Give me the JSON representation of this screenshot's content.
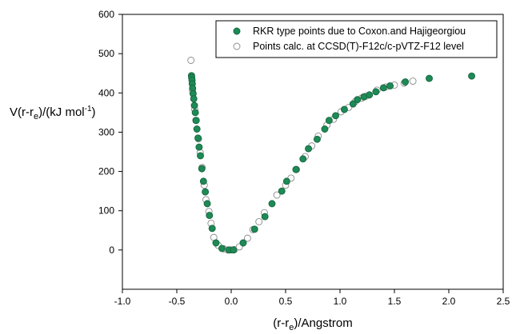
{
  "chart_data": {
    "type": "scatter",
    "title": "",
    "xlabel": {
      "pre": "(r-r",
      "sub": "e",
      "post": ")/Angstrom"
    },
    "ylabel": {
      "pre": "V(r-r",
      "sub": "e",
      "mid": ")/(kJ mol",
      "sup": "-1",
      "post": ")"
    },
    "xlim": [
      -1.0,
      2.5
    ],
    "ylim": [
      -100,
      600
    ],
    "xticks": [
      "-1.0",
      "-0.5",
      "0.0",
      "0.5",
      "1.0",
      "1.5",
      "2.0",
      "2.5"
    ],
    "yticks": [
      "0",
      "100",
      "200",
      "300",
      "400",
      "500",
      "600"
    ],
    "grid": false,
    "legend_position": "top-right",
    "colors": {
      "rkr_fill": "#1e8a55",
      "rkr_edge": "#146640",
      "calc_fill": "#ffffff",
      "calc_edge": "#8a8a8a"
    },
    "series": [
      {
        "name": "RKR type points due to Coxon.and Hajigeorgiou",
        "marker": "filled-circle",
        "points": [
          [
            -0.365,
            444
          ],
          [
            -0.363,
            439
          ],
          [
            -0.36,
            432
          ],
          [
            -0.358,
            423
          ],
          [
            -0.355,
            412
          ],
          [
            -0.35,
            398
          ],
          [
            -0.344,
            385
          ],
          [
            -0.338,
            368
          ],
          [
            -0.33,
            350
          ],
          [
            -0.322,
            330
          ],
          [
            -0.315,
            308
          ],
          [
            -0.305,
            285
          ],
          [
            -0.295,
            262
          ],
          [
            -0.283,
            240
          ],
          [
            -0.27,
            207
          ],
          [
            -0.255,
            175
          ],
          [
            -0.238,
            148
          ],
          [
            -0.22,
            118
          ],
          [
            -0.2,
            88
          ],
          [
            -0.175,
            55
          ],
          [
            -0.14,
            18
          ],
          [
            -0.085,
            4
          ],
          [
            -0.02,
            0
          ],
          [
            0.02,
            0
          ],
          [
            0.11,
            18
          ],
          [
            0.215,
            53
          ],
          [
            0.31,
            85
          ],
          [
            0.375,
            118
          ],
          [
            0.465,
            150
          ],
          [
            0.51,
            175
          ],
          [
            0.595,
            205
          ],
          [
            0.66,
            232
          ],
          [
            0.71,
            258
          ],
          [
            0.79,
            282
          ],
          [
            0.86,
            308
          ],
          [
            0.9,
            330
          ],
          [
            0.96,
            342
          ],
          [
            1.04,
            358
          ],
          [
            1.12,
            372
          ],
          [
            1.16,
            383
          ],
          [
            1.22,
            390
          ],
          [
            1.27,
            395
          ],
          [
            1.33,
            403
          ],
          [
            1.4,
            413
          ],
          [
            1.46,
            418
          ],
          [
            1.6,
            428
          ],
          [
            1.82,
            437
          ],
          [
            2.21,
            443
          ]
        ]
      },
      {
        "name": "Points calc. at CCSD(T)-F12c/c-pVTZ-F12 level",
        "marker": "open-circle",
        "points": [
          [
            -0.37,
            483
          ],
          [
            -0.355,
            405
          ],
          [
            -0.335,
            358
          ],
          [
            -0.325,
            330
          ],
          [
            -0.3,
            283
          ],
          [
            -0.285,
            248
          ],
          [
            -0.268,
            210
          ],
          [
            -0.248,
            165
          ],
          [
            -0.232,
            128
          ],
          [
            -0.205,
            98
          ],
          [
            -0.185,
            68
          ],
          [
            -0.16,
            32
          ],
          [
            -0.12,
            12
          ],
          [
            -0.07,
            3
          ],
          [
            -0.03,
            0
          ],
          [
            0.0,
            0
          ],
          [
            0.03,
            1
          ],
          [
            0.075,
            8
          ],
          [
            0.15,
            30
          ],
          [
            0.2,
            52
          ],
          [
            0.255,
            72
          ],
          [
            0.305,
            95
          ],
          [
            0.42,
            140
          ],
          [
            0.5,
            165
          ],
          [
            0.55,
            183
          ],
          [
            0.6,
            205
          ],
          [
            0.68,
            238
          ],
          [
            0.74,
            265
          ],
          [
            0.8,
            290
          ],
          [
            0.88,
            318
          ],
          [
            0.94,
            333
          ],
          [
            1.01,
            352
          ],
          [
            1.08,
            363
          ],
          [
            1.14,
            378
          ],
          [
            1.2,
            387
          ],
          [
            1.24,
            392
          ],
          [
            1.34,
            407
          ],
          [
            1.42,
            415
          ],
          [
            1.5,
            420
          ],
          [
            1.59,
            425
          ],
          [
            1.67,
            430
          ]
        ]
      }
    ]
  }
}
